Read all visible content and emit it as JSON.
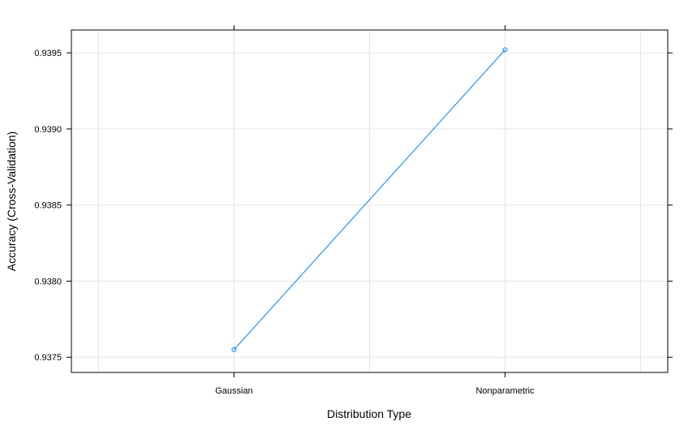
{
  "chart_data": {
    "type": "line",
    "categories": [
      "Gaussian",
      "Nonparametric"
    ],
    "series": [
      {
        "values": [
          0.93755,
          0.93952
        ],
        "color": "#0080FF"
      }
    ],
    "xlabel": "Distribution Type",
    "ylabel": "Accuracy (Cross-Validation)",
    "yticks": [
      0.9375,
      0.938,
      0.9385,
      0.939,
      0.9395
    ],
    "ytick_labels": [
      "0.9375",
      "0.9380",
      "0.9385",
      "0.9390",
      "0.9395"
    ],
    "ylim": [
      0.9374,
      0.93965
    ],
    "grid": true,
    "marker": "open-circle"
  }
}
